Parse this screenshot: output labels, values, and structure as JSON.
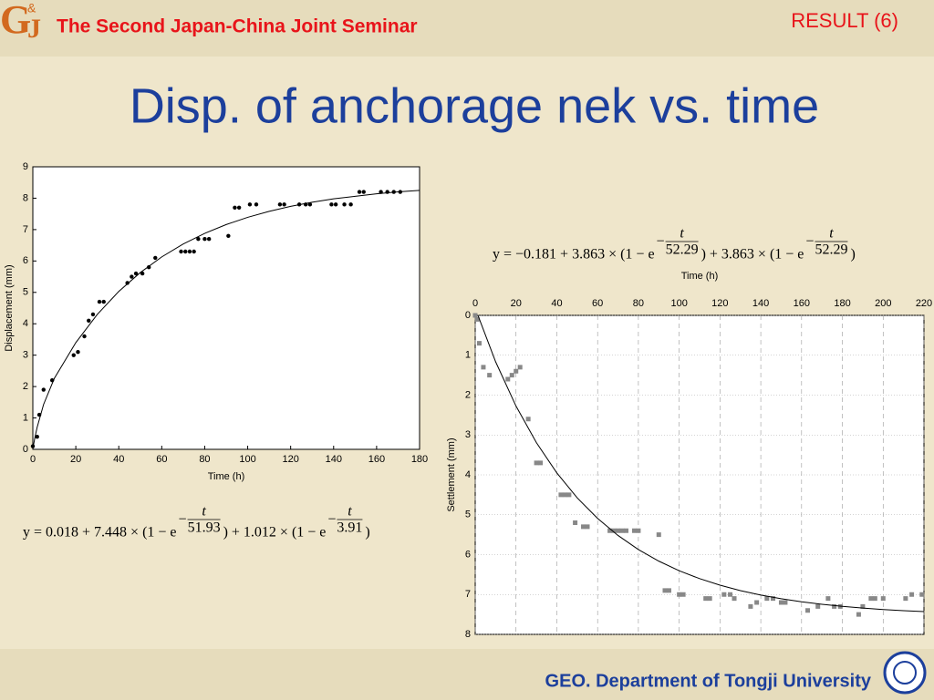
{
  "header": {
    "logo": [
      "G",
      "&",
      "J"
    ],
    "seminar": "The Second Japan-China Joint Seminar",
    "section": "RESULT (6)"
  },
  "title": "Disp. of anchorage nek vs. time",
  "footer": "GEO. Department of Tongji University",
  "chart_data": [
    {
      "type": "scatter",
      "x_label": "Time (h)",
      "y_label": "Displacement (mm)",
      "xlim": [
        0,
        180
      ],
      "ylim": [
        0,
        9
      ],
      "xticks": [
        0,
        20,
        40,
        60,
        80,
        100,
        120,
        140,
        160,
        180
      ],
      "yticks": [
        0,
        1,
        2,
        3,
        4,
        5,
        6,
        7,
        8,
        9
      ],
      "x_axis_position": "bottom",
      "y_inverted": false,
      "grid": false,
      "series": [
        {
          "marker": "circle",
          "color": "#000000",
          "x": [
            0,
            2,
            3,
            5,
            9,
            19,
            21,
            24,
            26,
            28,
            31,
            33,
            44,
            46,
            48,
            51,
            54,
            57,
            69,
            71,
            73,
            75,
            77,
            80,
            82,
            91,
            94,
            96,
            101,
            104,
            115,
            117,
            124,
            127,
            129,
            139,
            141,
            145,
            148,
            152,
            154,
            162,
            165,
            168,
            171
          ],
          "values": [
            0.1,
            0.4,
            1.1,
            1.9,
            2.2,
            3.0,
            3.1,
            3.6,
            4.1,
            4.3,
            4.7,
            4.7,
            5.3,
            5.5,
            5.6,
            5.6,
            5.8,
            6.1,
            6.3,
            6.3,
            6.3,
            6.3,
            6.7,
            6.7,
            6.7,
            6.8,
            7.7,
            7.7,
            7.8,
            7.8,
            7.8,
            7.8,
            7.8,
            7.8,
            7.8,
            7.8,
            7.8,
            7.8,
            7.8,
            8.2,
            8.2,
            8.2,
            8.2,
            8.2,
            8.2
          ]
        },
        {
          "marker": "line",
          "color": "#000000",
          "x": [
            0,
            1,
            2,
            5,
            10,
            20,
            30,
            40,
            50,
            60,
            70,
            80,
            90,
            100,
            110,
            120,
            130,
            140,
            150,
            160,
            170,
            180
          ],
          "values": [
            0.018,
            0.39,
            0.7,
            1.43,
            2.26,
            3.4,
            4.3,
            5.03,
            5.63,
            6.13,
            6.54,
            6.88,
            7.16,
            7.39,
            7.58,
            7.74,
            7.87,
            7.98,
            8.06,
            8.14,
            8.2,
            8.25
          ]
        }
      ],
      "equation": {
        "terms": [
          "y = 0.018 + 7.448 × (1 − e",
          ") + 1.012 × (1 − e",
          ")"
        ],
        "exponents": [
          {
            "sign": "−",
            "num": "t",
            "den": "51.93"
          },
          {
            "sign": "−",
            "num": "t",
            "den": "3.91"
          }
        ]
      }
    },
    {
      "type": "scatter",
      "x_label": "Time (h)",
      "y_label": "Settlement (mm)",
      "xlim": [
        0,
        220
      ],
      "ylim": [
        0,
        8
      ],
      "xticks": [
        0,
        20,
        40,
        60,
        80,
        100,
        120,
        140,
        160,
        180,
        200,
        220
      ],
      "yticks": [
        0,
        1,
        2,
        3,
        4,
        5,
        6,
        7,
        8
      ],
      "x_axis_position": "top",
      "y_inverted": true,
      "grid": true,
      "series": [
        {
          "marker": "square",
          "color": "#888888",
          "x": [
            0,
            1,
            2,
            4,
            7,
            16,
            18,
            20,
            22,
            26,
            30,
            32,
            42,
            44,
            46,
            49,
            53,
            55,
            66,
            68,
            70,
            72,
            74,
            78,
            80,
            90,
            93,
            95,
            100,
            102,
            113,
            115,
            122,
            125,
            127,
            135,
            138,
            143,
            146,
            150,
            152,
            163,
            168,
            173,
            176,
            179,
            188,
            190,
            194,
            196,
            200,
            211,
            214,
            219
          ],
          "values": [
            0,
            0.1,
            0.7,
            1.3,
            1.5,
            1.6,
            1.5,
            1.4,
            1.3,
            2.6,
            3.7,
            3.7,
            4.5,
            4.5,
            4.5,
            5.2,
            5.3,
            5.3,
            5.4,
            5.4,
            5.4,
            5.4,
            5.4,
            5.4,
            5.4,
            5.5,
            6.9,
            6.9,
            7.0,
            7.0,
            7.1,
            7.1,
            7.0,
            7.0,
            7.1,
            7.3,
            7.2,
            7.1,
            7.1,
            7.2,
            7.2,
            7.4,
            7.3,
            7.1,
            7.3,
            7.3,
            7.5,
            7.3,
            7.1,
            7.1,
            7.1,
            7.1,
            7.0,
            7.0
          ]
        },
        {
          "marker": "line",
          "color": "#000000",
          "x": [
            0,
            10,
            20,
            30,
            40,
            50,
            60,
            70,
            80,
            90,
            100,
            110,
            120,
            130,
            140,
            150,
            160,
            170,
            180,
            190,
            200,
            210,
            220
          ],
          "values": [
            -0.181,
            1.163,
            2.275,
            3.192,
            3.95,
            4.576,
            5.092,
            5.519,
            5.872,
            6.163,
            6.404,
            6.602,
            6.766,
            6.902,
            7.014,
            7.106,
            7.183,
            7.246,
            7.298,
            7.341,
            7.377,
            7.406,
            7.43
          ]
        }
      ],
      "equation": {
        "terms": [
          "y = −0.181 + 3.863 × (1 − e",
          ") + 3.863 × (1 − e",
          ")"
        ],
        "exponents": [
          {
            "sign": "−",
            "num": "t",
            "den": "52.29"
          },
          {
            "sign": "−",
            "num": "t",
            "den": "52.29"
          }
        ]
      }
    }
  ]
}
